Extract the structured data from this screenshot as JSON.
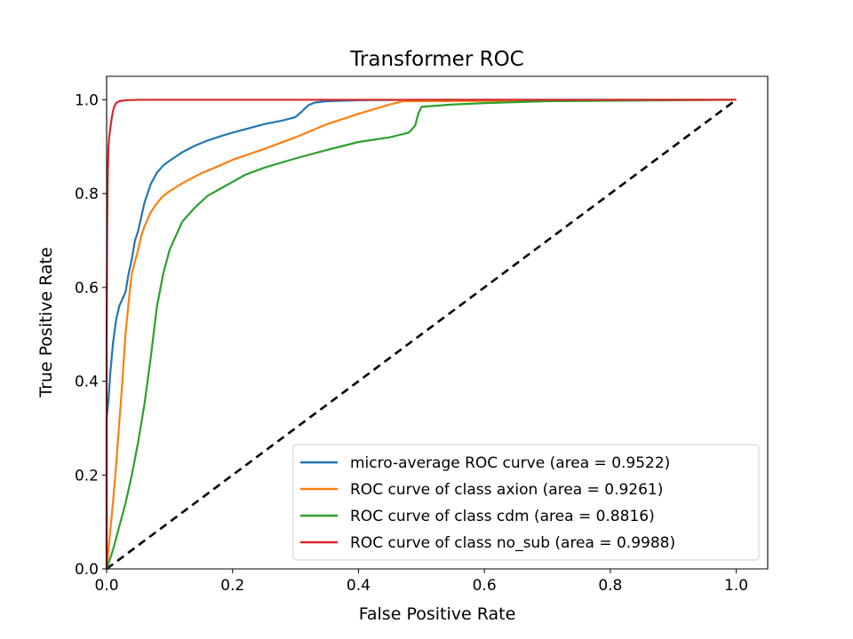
{
  "chart_data": {
    "type": "line",
    "title": "Transformer ROC",
    "xlabel": "False Positive Rate",
    "ylabel": "True Positive Rate",
    "xlim": [
      0.0,
      1.05
    ],
    "ylim": [
      0.0,
      1.05
    ],
    "xticks": [
      "0.0",
      "0.2",
      "0.4",
      "0.6",
      "0.8",
      "1.0"
    ],
    "yticks": [
      "0.0",
      "0.2",
      "0.4",
      "0.6",
      "0.8",
      "1.0"
    ],
    "grid": false,
    "legend_position": "lower-right",
    "series": [
      {
        "name": "micro-average ROC curve (area = 0.9522)",
        "color": "#1f77b4",
        "x": [
          0.0,
          0.0,
          0.003,
          0.006,
          0.01,
          0.015,
          0.02,
          0.025,
          0.03,
          0.035,
          0.04,
          0.045,
          0.05,
          0.055,
          0.06,
          0.07,
          0.08,
          0.09,
          0.1,
          0.12,
          0.14,
          0.16,
          0.18,
          0.2,
          0.22,
          0.25,
          0.28,
          0.3,
          0.31,
          0.32,
          0.33,
          0.35,
          0.4,
          0.5,
          1.0
        ],
        "y": [
          0.0,
          0.32,
          0.36,
          0.42,
          0.48,
          0.53,
          0.56,
          0.575,
          0.59,
          0.63,
          0.66,
          0.7,
          0.72,
          0.75,
          0.78,
          0.82,
          0.845,
          0.86,
          0.87,
          0.888,
          0.902,
          0.913,
          0.922,
          0.93,
          0.937,
          0.948,
          0.956,
          0.963,
          0.975,
          0.988,
          0.994,
          0.997,
          0.999,
          1.0,
          1.0
        ]
      },
      {
        "name": "ROC curve of class axion (area = 0.9261)",
        "color": "#ff7f0e",
        "x": [
          0.0,
          0.005,
          0.01,
          0.015,
          0.02,
          0.025,
          0.03,
          0.035,
          0.04,
          0.05,
          0.055,
          0.06,
          0.065,
          0.07,
          0.08,
          0.09,
          0.1,
          0.12,
          0.15,
          0.18,
          0.2,
          0.25,
          0.3,
          0.35,
          0.4,
          0.45,
          0.47,
          1.0
        ],
        "y": [
          0.0,
          0.07,
          0.14,
          0.22,
          0.31,
          0.4,
          0.5,
          0.57,
          0.63,
          0.68,
          0.71,
          0.73,
          0.745,
          0.76,
          0.78,
          0.795,
          0.805,
          0.822,
          0.843,
          0.86,
          0.872,
          0.895,
          0.92,
          0.948,
          0.97,
          0.99,
          0.997,
          1.0
        ]
      },
      {
        "name": "ROC curve of class cdm (area = 0.8816)",
        "color": "#2ca02c",
        "x": [
          0.0,
          0.01,
          0.02,
          0.03,
          0.04,
          0.05,
          0.06,
          0.07,
          0.08,
          0.09,
          0.1,
          0.12,
          0.14,
          0.16,
          0.18,
          0.2,
          0.22,
          0.25,
          0.3,
          0.35,
          0.4,
          0.45,
          0.48,
          0.49,
          0.495,
          0.5,
          0.55,
          0.6,
          0.7,
          1.0
        ],
        "y": [
          0.0,
          0.04,
          0.09,
          0.14,
          0.2,
          0.27,
          0.35,
          0.45,
          0.56,
          0.63,
          0.68,
          0.74,
          0.77,
          0.795,
          0.81,
          0.825,
          0.84,
          0.855,
          0.875,
          0.893,
          0.91,
          0.92,
          0.93,
          0.945,
          0.97,
          0.985,
          0.99,
          0.993,
          0.997,
          1.0
        ]
      },
      {
        "name": "ROC curve of class no_sub (area = 0.9988)",
        "color": "#d62728",
        "x": [
          0.0,
          0.0,
          0.001,
          0.002,
          0.003,
          0.004,
          0.005,
          0.006,
          0.008,
          0.01,
          0.012,
          0.015,
          0.02,
          0.03,
          0.05,
          1.0
        ],
        "y": [
          0.0,
          0.5,
          0.75,
          0.85,
          0.9,
          0.92,
          0.93,
          0.94,
          0.96,
          0.975,
          0.985,
          0.993,
          0.997,
          0.999,
          1.0,
          1.0
        ]
      }
    ],
    "reference_line": {
      "style": "dashed",
      "color": "#000000",
      "x": [
        0.0,
        1.0
      ],
      "y": [
        0.0,
        1.0
      ]
    }
  }
}
